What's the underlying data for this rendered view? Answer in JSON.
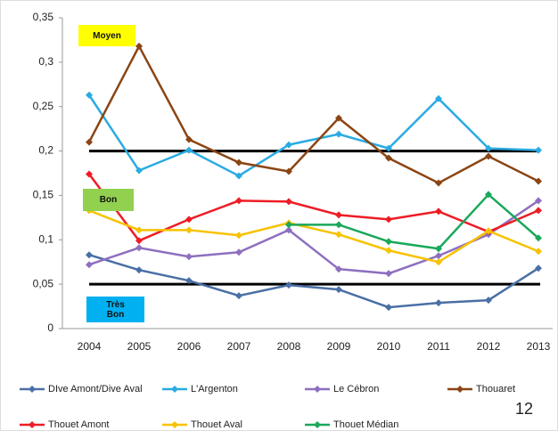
{
  "chart_data": {
    "type": "line",
    "categories": [
      "2004",
      "2005",
      "2006",
      "2007",
      "2008",
      "2009",
      "2010",
      "2011",
      "2012",
      "2013"
    ],
    "ylim": [
      0,
      0.35
    ],
    "yticks": [
      0,
      {
        "value": 0.05,
        "label": "0,05"
      },
      {
        "value": 0.1,
        "label": "0,1"
      },
      {
        "value": 0.15,
        "label": "0,15"
      },
      {
        "value": 0.2,
        "label": "0,2"
      },
      {
        "value": 0.25,
        "label": "0,25"
      },
      {
        "value": 0.3,
        "label": "0,3"
      },
      {
        "value": 0.35,
        "label": "0,35"
      }
    ],
    "thresholds": [
      0.2,
      0.05
    ],
    "annotations": [
      {
        "text": "Moyen",
        "color": "#ffff00"
      },
      {
        "text": "Bon",
        "color": "#92d050"
      },
      {
        "text": "Très Bon",
        "color": "#00b0f0"
      }
    ],
    "series": [
      {
        "name": "DIve Amont/Dive Aval",
        "color": "#4a6fa5",
        "values": [
          0.083,
          0.066,
          0.054,
          0.037,
          0.049,
          0.044,
          0.024,
          0.029,
          0.032,
          0.068
        ]
      },
      {
        "name": "L'Argenton",
        "color": "#29abe2",
        "values": [
          0.263,
          0.178,
          0.201,
          0.172,
          0.207,
          0.219,
          0.203,
          0.259,
          0.203,
          0.201
        ]
      },
      {
        "name": "Le Cébron",
        "color": "#8e6fbf",
        "values": [
          0.072,
          0.091,
          0.081,
          0.086,
          0.111,
          0.067,
          0.062,
          0.082,
          0.106,
          0.144
        ]
      },
      {
        "name": "Thouaret",
        "color": "#8b4513",
        "values": [
          0.21,
          0.318,
          0.213,
          0.187,
          0.177,
          0.237,
          0.192,
          0.164,
          0.194,
          0.166
        ]
      },
      {
        "name": "Thouet Amont",
        "color": "#ee1c25",
        "values": [
          0.174,
          0.099,
          0.123,
          0.144,
          0.143,
          0.128,
          0.123,
          0.132,
          0.109,
          0.133
        ]
      },
      {
        "name": "Thouet Aval",
        "color": "#f7c200",
        "values": [
          0.133,
          0.111,
          0.111,
          0.105,
          0.119,
          0.106,
          0.088,
          0.075,
          0.11,
          0.087
        ]
      },
      {
        "name": "Thouet Médian",
        "color": "#1aa85a",
        "values": [
          null,
          null,
          null,
          null,
          0.117,
          0.117,
          0.098,
          0.09,
          0.151,
          0.102
        ]
      }
    ],
    "page_number": "12"
  }
}
